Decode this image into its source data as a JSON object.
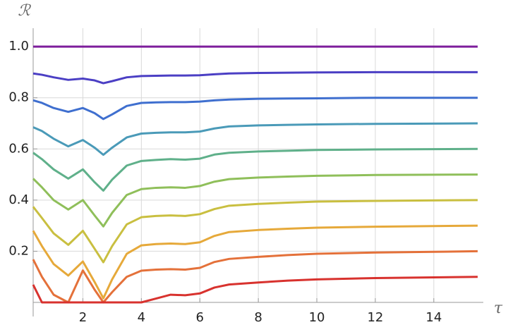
{
  "chart_data": {
    "type": "line",
    "x_label": "τ",
    "y_label": "ℛ",
    "x": [
      0.3,
      0.6,
      1.0,
      1.5,
      2.0,
      2.4,
      2.7,
      3.0,
      3.5,
      4.0,
      4.5,
      5.0,
      5.5,
      6.0,
      6.5,
      7.0,
      8.0,
      9.0,
      10.0,
      12.0,
      15.5
    ],
    "series": [
      {
        "color": "#7e1e9c",
        "values": [
          1,
          1,
          1,
          1,
          1,
          1,
          1,
          1,
          1,
          1,
          1,
          1,
          1,
          1,
          1,
          1,
          1,
          1,
          1,
          1,
          1
        ]
      },
      {
        "color": "#4b3fc4",
        "values": [
          0.895,
          0.89,
          0.88,
          0.87,
          0.875,
          0.868,
          0.857,
          0.865,
          0.88,
          0.885,
          0.886,
          0.887,
          0.887,
          0.888,
          0.892,
          0.895,
          0.897,
          0.898,
          0.899,
          0.9,
          0.9
        ]
      },
      {
        "color": "#3f6fcf",
        "values": [
          0.79,
          0.78,
          0.76,
          0.745,
          0.76,
          0.74,
          0.717,
          0.735,
          0.768,
          0.78,
          0.782,
          0.783,
          0.783,
          0.785,
          0.79,
          0.793,
          0.796,
          0.797,
          0.798,
          0.8,
          0.8
        ]
      },
      {
        "color": "#4a9ab8",
        "values": [
          0.685,
          0.67,
          0.64,
          0.61,
          0.635,
          0.605,
          0.577,
          0.605,
          0.645,
          0.66,
          0.663,
          0.665,
          0.665,
          0.668,
          0.68,
          0.688,
          0.692,
          0.694,
          0.696,
          0.698,
          0.7
        ]
      },
      {
        "color": "#5fb08a",
        "values": [
          0.585,
          0.56,
          0.52,
          0.484,
          0.52,
          0.47,
          0.437,
          0.48,
          0.535,
          0.553,
          0.557,
          0.56,
          0.558,
          0.562,
          0.578,
          0.585,
          0.59,
          0.593,
          0.596,
          0.598,
          0.6
        ]
      },
      {
        "color": "#8fbf5a",
        "values": [
          0.484,
          0.45,
          0.4,
          0.363,
          0.4,
          0.34,
          0.297,
          0.35,
          0.42,
          0.443,
          0.448,
          0.45,
          0.448,
          0.455,
          0.472,
          0.482,
          0.488,
          0.492,
          0.495,
          0.498,
          0.5
        ]
      },
      {
        "color": "#c9bf40",
        "values": [
          0.374,
          0.33,
          0.27,
          0.225,
          0.28,
          0.21,
          0.157,
          0.22,
          0.305,
          0.333,
          0.338,
          0.34,
          0.338,
          0.345,
          0.365,
          0.378,
          0.385,
          0.39,
          0.394,
          0.397,
          0.4
        ]
      },
      {
        "color": "#e6a93a",
        "values": [
          0.28,
          0.22,
          0.15,
          0.105,
          0.16,
          0.08,
          0.016,
          0.09,
          0.19,
          0.223,
          0.228,
          0.23,
          0.228,
          0.235,
          0.26,
          0.275,
          0.283,
          0.288,
          0.292,
          0.296,
          0.3
        ]
      },
      {
        "color": "#e4713a",
        "values": [
          0.168,
          0.1,
          0.03,
          0,
          0.125,
          0.05,
          0,
          0.04,
          0.1,
          0.124,
          0.128,
          0.13,
          0.128,
          0.135,
          0.158,
          0.17,
          0.178,
          0.185,
          0.19,
          0.195,
          0.2
        ]
      },
      {
        "color": "#d8322e",
        "values": [
          0.069,
          0,
          0,
          0,
          0,
          0,
          0,
          0,
          0,
          0,
          0.015,
          0.03,
          0.028,
          0.035,
          0.058,
          0.07,
          0.078,
          0.085,
          0.09,
          0.095,
          0.1
        ]
      }
    ],
    "xlim": [
      0.3,
      15.5
    ],
    "ylim": [
      0,
      1.05
    ],
    "xticks": [
      2,
      4,
      6,
      8,
      10,
      12,
      14
    ],
    "yticks": [
      0.2,
      0.4,
      0.6,
      0.8,
      {
        "value": 1,
        "label": "1.0"
      }
    ],
    "grid": true
  }
}
